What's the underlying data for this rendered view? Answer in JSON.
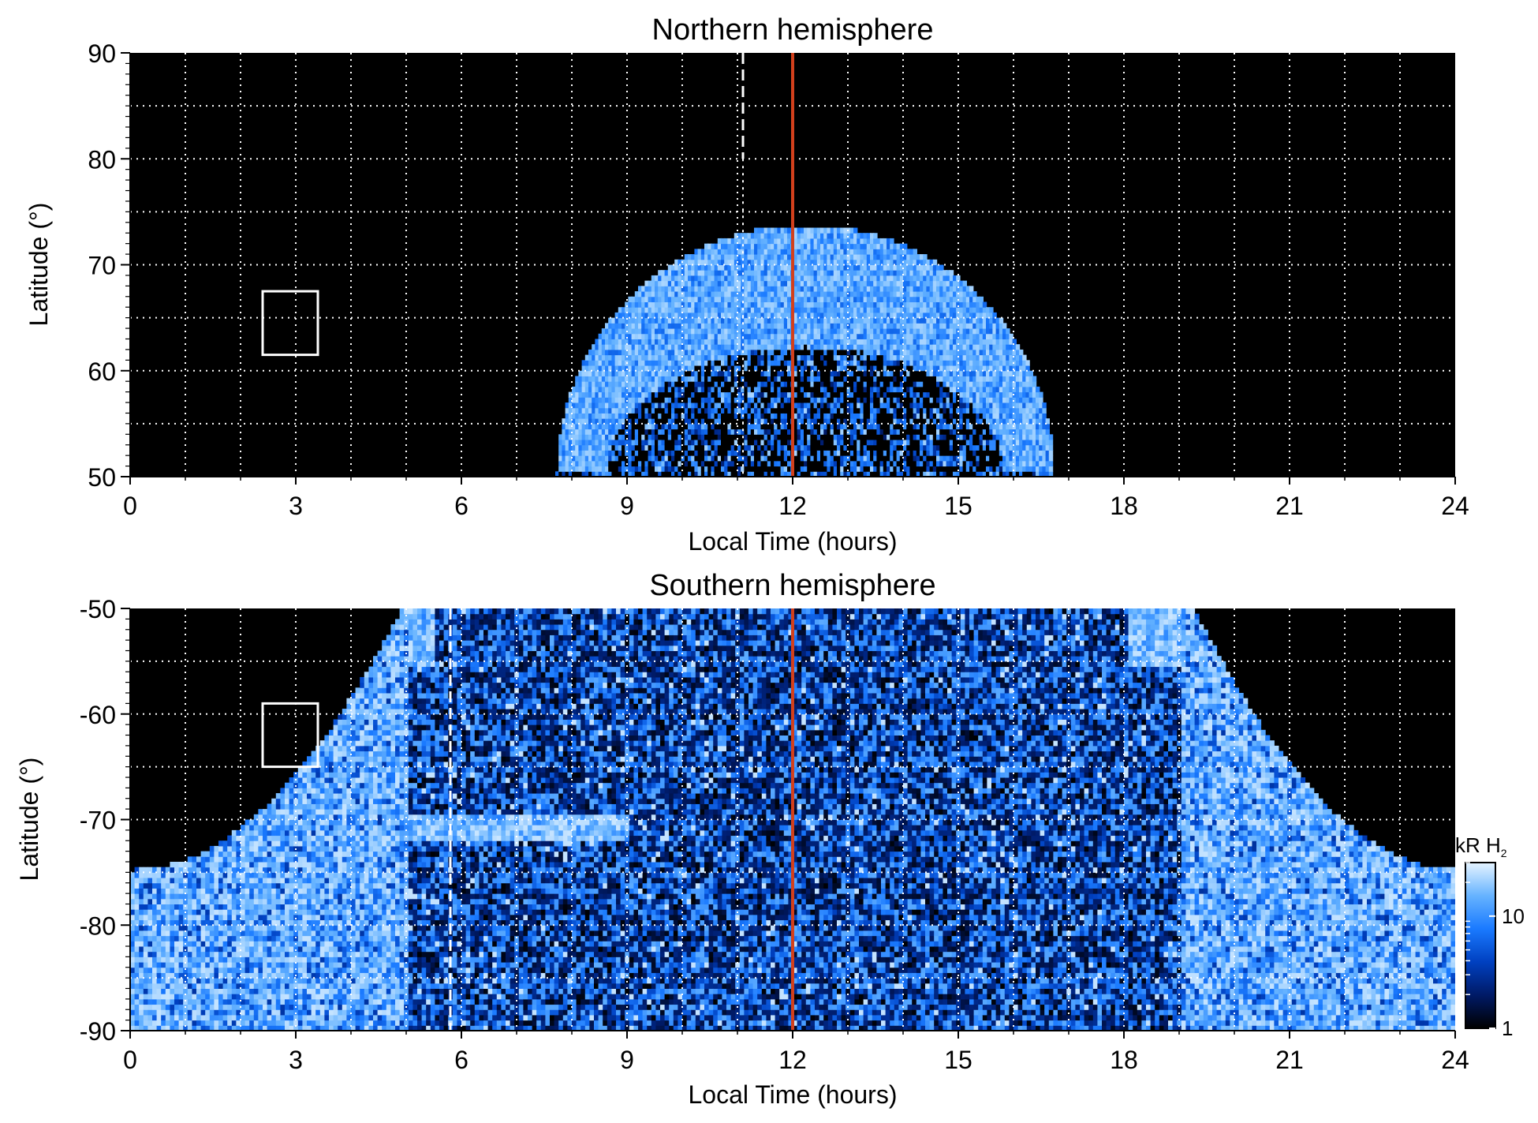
{
  "chart_data": [
    {
      "type": "heatmap",
      "title": "Northern hemisphere",
      "xlabel": "Local Time (hours)",
      "ylabel": "Latitude (°)",
      "xlim": [
        0,
        24
      ],
      "ylim": [
        50,
        90
      ],
      "xticks": [
        0,
        3,
        6,
        9,
        12,
        15,
        18,
        21,
        24
      ],
      "xtick_labels": [
        "0",
        "3",
        "6",
        "9",
        "12",
        "15",
        "18",
        "21",
        "24"
      ],
      "yticks": [
        50,
        60,
        70,
        80,
        90
      ],
      "ytick_labels": [
        "50",
        "60",
        "70",
        "80",
        "90"
      ],
      "grid": true,
      "background": "#000000",
      "auroral_oval": {
        "lt_min": 7.7,
        "lt_max": 16.7,
        "center_lt": 12.2,
        "peak_lat": 73.5,
        "inner_lat": 62.0
      },
      "dashed_line_lt": 11.1,
      "dashed_line_lat_range": [
        80.0,
        90.0
      ],
      "red_line_lt": 12.0,
      "box": {
        "lt": [
          2.4,
          3.4
        ],
        "lat": [
          61.5,
          67.5
        ]
      }
    },
    {
      "type": "heatmap",
      "title": "Southern hemisphere",
      "xlabel": "Local Time (hours)",
      "ylabel": "Latitude (°)",
      "xlim": [
        0,
        24
      ],
      "ylim": [
        -90,
        -50
      ],
      "xticks": [
        0,
        3,
        6,
        9,
        12,
        15,
        18,
        21,
        24
      ],
      "xtick_labels": [
        "0",
        "3",
        "6",
        "9",
        "12",
        "15",
        "18",
        "21",
        "24"
      ],
      "yticks": [
        -50,
        -60,
        -70,
        -80,
        -90
      ],
      "ytick_labels": [
        "-50",
        "-60",
        "-70",
        "-80",
        "-90"
      ],
      "grid": true,
      "background": "#000000",
      "auroral_region": {
        "dawn_edge_lt": 4.9,
        "dusk_edge_lt": 19.2,
        "equatorward_lat": -50.0,
        "polar_floor_lat": -75.0
      },
      "dashed_line_lt": 5.8,
      "red_line_lt": 12.0,
      "box": {
        "lt": [
          2.4,
          3.4
        ],
        "lat": [
          -65.0,
          -59.0
        ]
      }
    }
  ],
  "colorbar": {
    "unit_label": "kR H",
    "unit_subscript": "2",
    "scale": "log",
    "range": [
      1,
      30
    ],
    "tick_labels": [
      "1",
      "10"
    ],
    "colors": [
      "#000000",
      "#001a66",
      "#0040c0",
      "#1a7aff",
      "#66b3ff",
      "#e6f4ff"
    ]
  },
  "colors": {
    "noon_line": "#d2401c",
    "emission": "#1e7fff",
    "grid": "#ffffff"
  }
}
